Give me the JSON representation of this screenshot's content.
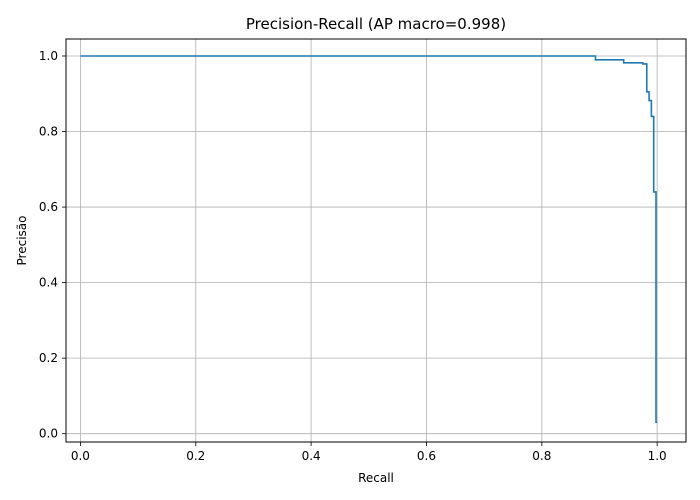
{
  "chart_data": {
    "type": "line",
    "title": "Precision-Recall (AP macro=0.998)",
    "xlabel": "Recall",
    "ylabel": "Precisão",
    "xlim": [
      -0.025,
      1.05
    ],
    "ylim": [
      -0.022,
      1.045
    ],
    "xticks": [
      0.0,
      0.2,
      0.4,
      0.6,
      0.8,
      1.0
    ],
    "xtick_labels": [
      "0.0",
      "0.2",
      "0.4",
      "0.6",
      "0.8",
      "1.0"
    ],
    "yticks": [
      0.0,
      0.2,
      0.4,
      0.6,
      0.8,
      1.0
    ],
    "ytick_labels": [
      "0.0",
      "0.2",
      "0.4",
      "0.6",
      "0.8",
      "1.0"
    ],
    "grid": true,
    "series": [
      {
        "color": "#1f77b4",
        "step": "post",
        "x": [
          0.0,
          0.893,
          0.893,
          0.942,
          0.942,
          0.975,
          0.975,
          0.982,
          0.982,
          0.986,
          0.986,
          0.99,
          0.99,
          0.994,
          0.994,
          0.998,
          0.998,
          1.0
        ],
        "y": [
          1.0,
          1.0,
          0.99,
          0.99,
          0.982,
          0.982,
          0.979,
          0.979,
          0.905,
          0.905,
          0.882,
          0.882,
          0.84,
          0.84,
          0.64,
          0.64,
          0.03,
          0.03
        ]
      }
    ]
  }
}
